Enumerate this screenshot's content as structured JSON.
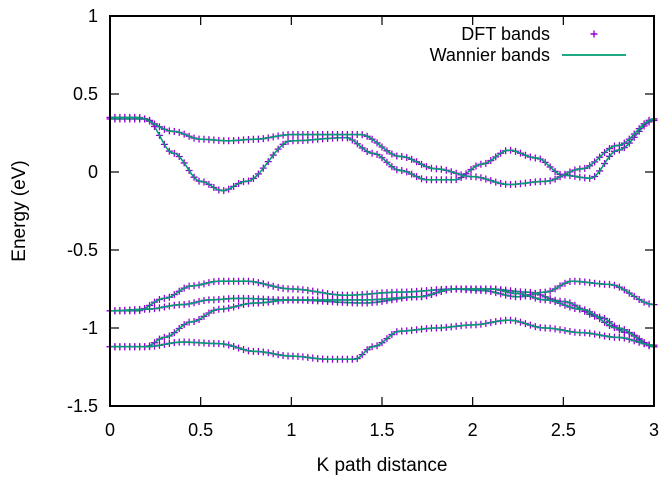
{
  "chart_data": {
    "type": "line",
    "title": "",
    "xlabel": "K path distance",
    "ylabel": "Energy (eV)",
    "xlim": [
      0,
      3
    ],
    "ylim": [
      -1.5,
      1
    ],
    "x_ticks": [
      "0",
      "0.5",
      "1",
      "1.5",
      "2",
      "2.5",
      "3"
    ],
    "y_ticks": [
      "1",
      "0.5",
      "0",
      "-0.5",
      "-1",
      "-1.5"
    ],
    "grid": false,
    "legend_position": "top-right",
    "legend": [
      {
        "label": "DFT bands",
        "style": "points",
        "color": "#9400d3"
      },
      {
        "label": "Wannier bands",
        "style": "line",
        "color": "#009e73"
      }
    ],
    "bands": [
      {
        "x": [
          0,
          0.2,
          0.35,
          0.5,
          0.62,
          0.75,
          1.0,
          1.3,
          1.45,
          1.6,
          1.75,
          1.9,
          2.05,
          2.2,
          2.35,
          2.5,
          2.65,
          2.8,
          3.0
        ],
        "y": [
          0.34,
          0.34,
          0.12,
          -0.06,
          -0.12,
          -0.06,
          0.2,
          0.22,
          0.12,
          0.01,
          -0.05,
          -0.05,
          0.05,
          0.14,
          0.09,
          -0.02,
          -0.04,
          0.14,
          0.33
        ]
      },
      {
        "x": [
          0,
          0.15,
          0.35,
          0.5,
          0.65,
          0.8,
          1.0,
          1.2,
          1.38,
          1.6,
          1.8,
          2.0,
          2.2,
          2.4,
          2.6,
          2.8,
          3.0
        ],
        "y": [
          0.35,
          0.35,
          0.26,
          0.21,
          0.2,
          0.21,
          0.24,
          0.24,
          0.24,
          0.1,
          0.02,
          -0.03,
          -0.08,
          -0.06,
          0.02,
          0.17,
          0.34
        ]
      },
      {
        "x": [
          0,
          0.15,
          0.3,
          0.45,
          0.6,
          0.75,
          1.0,
          1.3,
          1.6,
          1.9,
          2.1,
          2.3,
          2.5,
          2.7,
          2.85,
          3.0
        ],
        "y": [
          -0.89,
          -0.89,
          -0.81,
          -0.73,
          -0.7,
          -0.7,
          -0.75,
          -0.79,
          -0.77,
          -0.75,
          -0.75,
          -0.77,
          -0.83,
          -0.93,
          -1.03,
          -1.12
        ]
      },
      {
        "x": [
          0,
          0.2,
          0.4,
          0.55,
          0.7,
          1.0,
          1.4,
          1.7,
          1.9,
          2.05,
          2.25,
          2.4,
          2.55,
          2.75,
          3.0
        ],
        "y": [
          -0.89,
          -0.88,
          -0.85,
          -0.82,
          -0.81,
          -0.82,
          -0.84,
          -0.8,
          -0.75,
          -0.76,
          -0.8,
          -0.77,
          -0.7,
          -0.72,
          -0.85
        ]
      },
      {
        "x": [
          0,
          0.2,
          0.3,
          0.45,
          0.6,
          0.8,
          1.0,
          1.4,
          1.7,
          1.9,
          2.1,
          2.25,
          2.4,
          2.6,
          2.8,
          3.0
        ],
        "y": [
          -1.12,
          -1.12,
          -1.06,
          -0.96,
          -0.88,
          -0.84,
          -0.82,
          -0.82,
          -0.8,
          -0.75,
          -0.75,
          -0.78,
          -0.82,
          -0.88,
          -1.0,
          -1.12
        ]
      },
      {
        "x": [
          0,
          0.2,
          0.4,
          0.6,
          0.8,
          1.0,
          1.2,
          1.35,
          1.45,
          1.6,
          1.8,
          2.0,
          2.2,
          2.4,
          2.6,
          2.8,
          3.0
        ],
        "y": [
          -1.12,
          -1.12,
          -1.09,
          -1.1,
          -1.15,
          -1.18,
          -1.2,
          -1.2,
          -1.12,
          -1.02,
          -1.0,
          -0.98,
          -0.95,
          -1.0,
          -1.03,
          -1.06,
          -1.11
        ]
      }
    ]
  }
}
